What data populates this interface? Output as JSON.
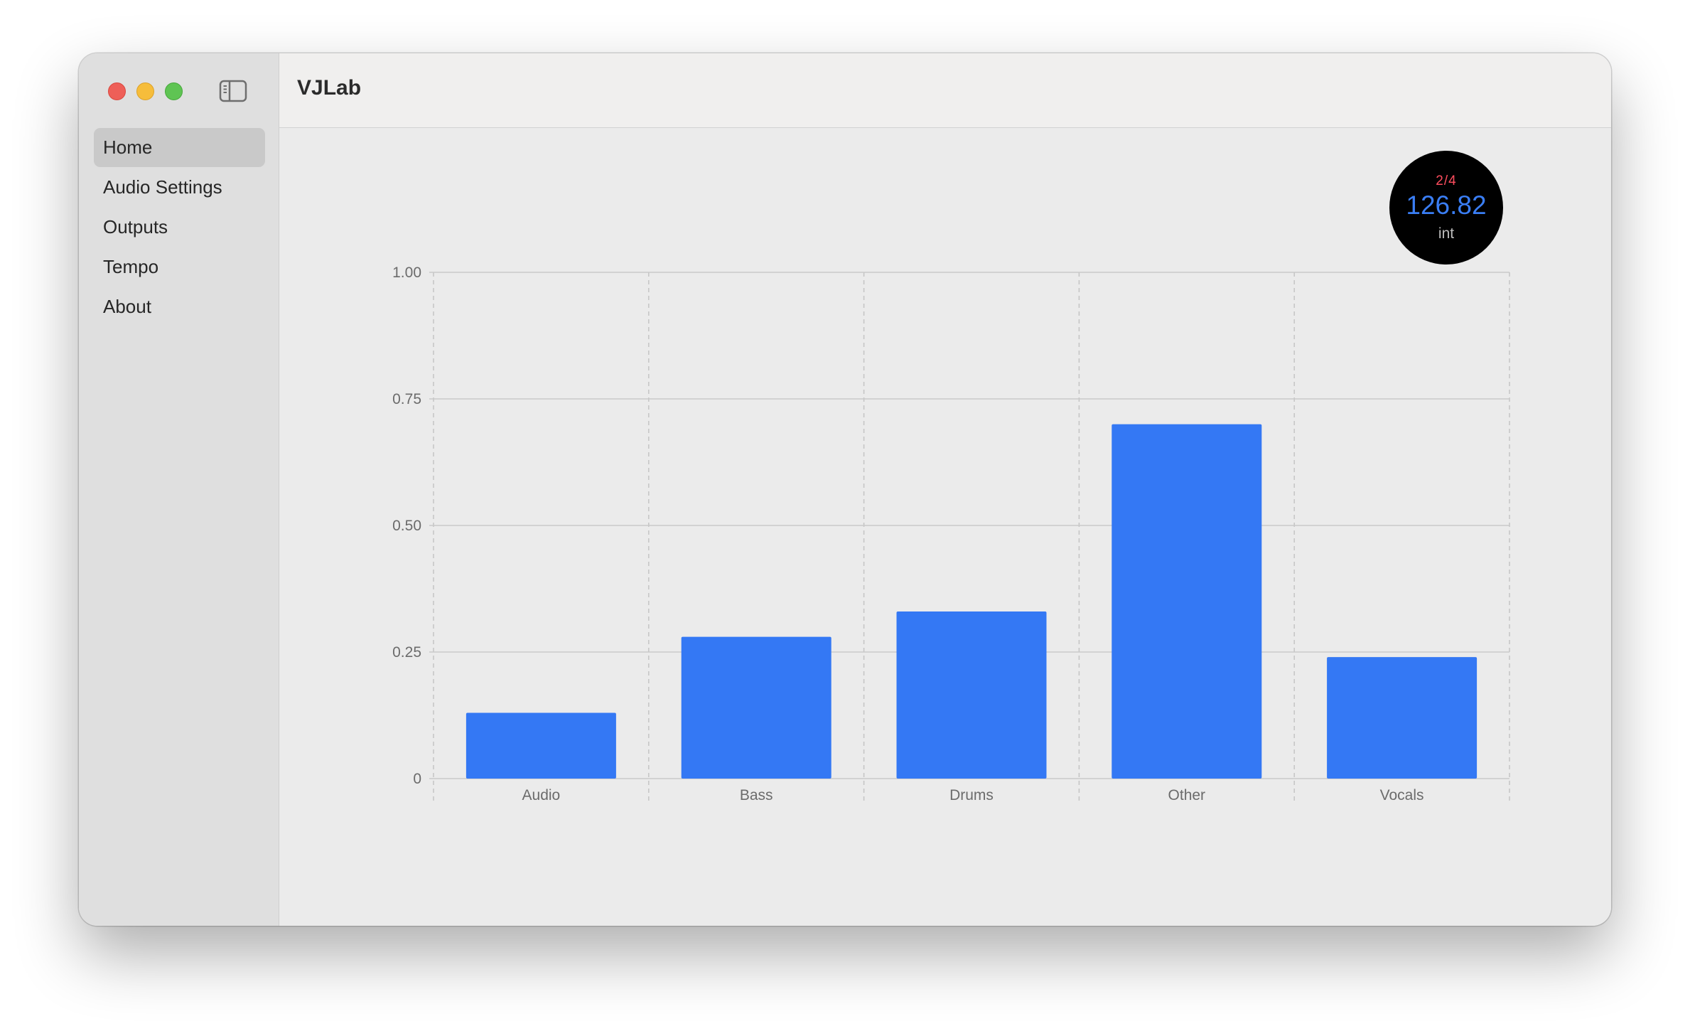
{
  "app": {
    "title": "VJLab"
  },
  "window_controls": {
    "close_color": "#ee5f58",
    "minimize_color": "#f6bd3b",
    "maximize_color": "#5fc453",
    "sidebar_toggle_icon": "sidebar-left-icon"
  },
  "sidebar": {
    "items": [
      {
        "label": "Home",
        "active": true
      },
      {
        "label": "Audio Settings",
        "active": false
      },
      {
        "label": "Outputs",
        "active": false
      },
      {
        "label": "Tempo",
        "active": false
      },
      {
        "label": "About",
        "active": false
      }
    ]
  },
  "tempo": {
    "beat": "2/4",
    "bpm": "126.82",
    "mode": "int"
  },
  "colors": {
    "bar": "#3478f4",
    "beat": "#ff4d5e",
    "bpm": "#3a7ef5"
  },
  "chart_data": {
    "type": "bar",
    "categories": [
      "Audio",
      "Bass",
      "Drums",
      "Other",
      "Vocals"
    ],
    "values": [
      0.13,
      0.28,
      0.33,
      0.7,
      0.24
    ],
    "y_ticks": [
      "0",
      "0.25",
      "0.50",
      "0.75",
      "1.00"
    ],
    "ylim": [
      0,
      1
    ],
    "grid": true,
    "xlabel": "",
    "ylabel": ""
  }
}
